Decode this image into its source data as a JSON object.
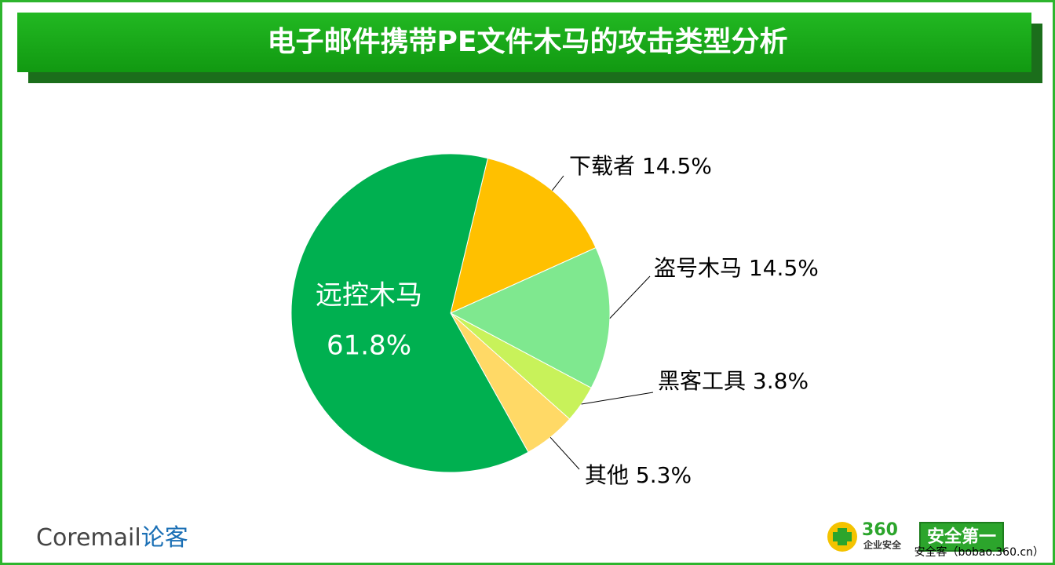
{
  "chart_data": {
    "type": "pie",
    "title": "电子邮件携带PE文件木马的攻击类型分析",
    "categories": [
      "下载者",
      "盗号木马",
      "黑客工具",
      "其他",
      "远控木马"
    ],
    "values": [
      14.5,
      14.5,
      3.8,
      5.3,
      61.8
    ],
    "value_labels": [
      "14.5%",
      "14.5%",
      "3.8%",
      "5.3%",
      "61.8%"
    ],
    "colors": [
      "#ffc000",
      "#7fe88f",
      "#c8f25a",
      "#ffd966",
      "#00b050"
    ]
  },
  "footer": {
    "brand": "Coremail",
    "brand_cn": "论客",
    "logo_number": "360",
    "logo_sub": "企业安全",
    "logo_badge": "安全第一",
    "site": "安全客（bobao.360.cn）"
  }
}
